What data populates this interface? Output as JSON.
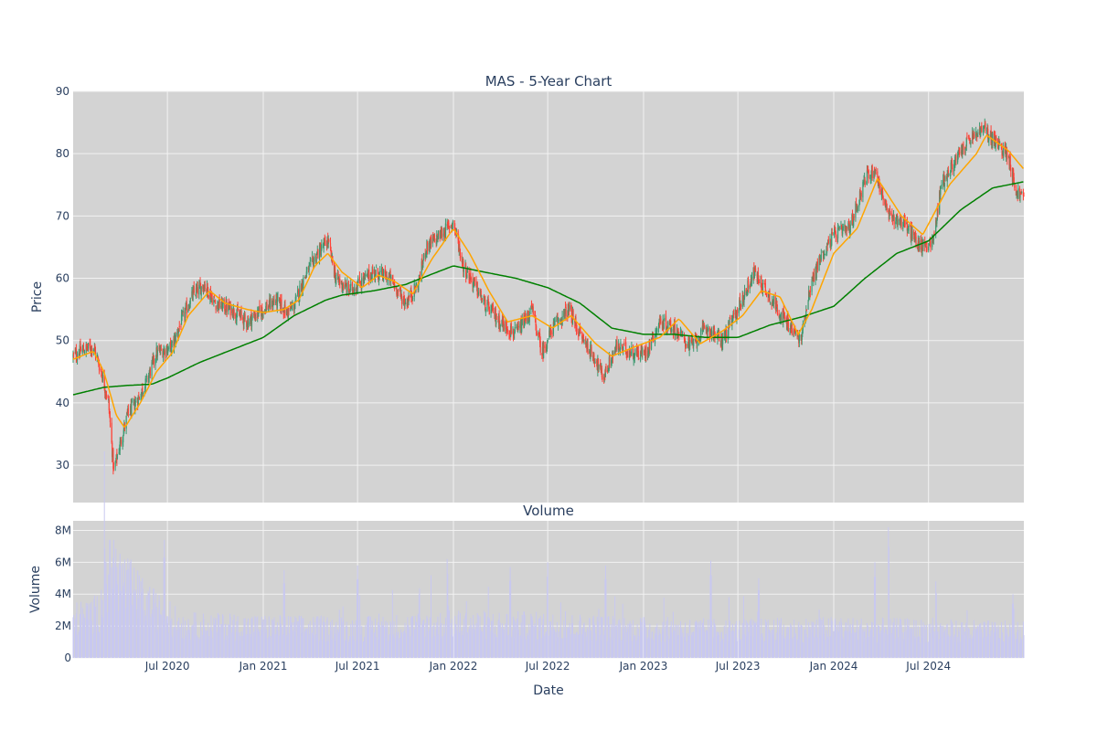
{
  "chart_data": [
    {
      "type": "candlestick",
      "title": "MAS - 5-Year Chart",
      "ylabel": "Price",
      "xlabel": "",
      "ylim": [
        24,
        90
      ],
      "yticks": [
        30,
        40,
        50,
        60,
        70,
        80,
        90
      ],
      "x_range": [
        "2020-01-02",
        "2024-12-31"
      ],
      "xtick_dates": [
        "2020-07-01",
        "2021-01-01",
        "2021-07-01",
        "2022-01-01",
        "2022-07-01",
        "2023-01-01",
        "2023-07-01",
        "2024-01-01",
        "2024-07-01"
      ],
      "grid": true,
      "legend": "none",
      "colors": {
        "plot_bg": "#d3d3d3",
        "grid": "#f2f2f2",
        "up": "#3d9970",
        "down": "#ff4136",
        "ma_short": "#ffa500",
        "ma_long": "#008000",
        "text": "#2a3f5f"
      },
      "close_anchors": [
        [
          "2020-01-02",
          47.5
        ],
        [
          "2020-01-20",
          48.5
        ],
        [
          "2020-02-10",
          49.0
        ],
        [
          "2020-02-25",
          45.0
        ],
        [
          "2020-03-10",
          40.0
        ],
        [
          "2020-03-20",
          29.0
        ],
        [
          "2020-03-31",
          33.0
        ],
        [
          "2020-04-15",
          38.0
        ],
        [
          "2020-05-01",
          40.0
        ],
        [
          "2020-05-20",
          43.0
        ],
        [
          "2020-06-10",
          48.0
        ],
        [
          "2020-07-10",
          49.0
        ],
        [
          "2020-08-01",
          54.0
        ],
        [
          "2020-08-20",
          57.5
        ],
        [
          "2020-09-10",
          59.0
        ],
        [
          "2020-10-01",
          56.0
        ],
        [
          "2020-11-01",
          55.0
        ],
        [
          "2020-12-01",
          53.0
        ],
        [
          "2021-01-01",
          55.0
        ],
        [
          "2021-01-25",
          56.5
        ],
        [
          "2021-02-15",
          54.5
        ],
        [
          "2021-03-01",
          55.5
        ],
        [
          "2021-03-20",
          60.0
        ],
        [
          "2021-04-15",
          64.0
        ],
        [
          "2021-05-05",
          66.0
        ],
        [
          "2021-05-20",
          60.0
        ],
        [
          "2021-06-15",
          58.0
        ],
        [
          "2021-07-01",
          59.0
        ],
        [
          "2021-08-01",
          61.0
        ],
        [
          "2021-09-01",
          60.0
        ],
        [
          "2021-10-01",
          56.0
        ],
        [
          "2021-10-25",
          59.0
        ],
        [
          "2021-11-10",
          65.0
        ],
        [
          "2021-12-01",
          66.5
        ],
        [
          "2022-01-01",
          69.0
        ],
        [
          "2022-01-20",
          62.0
        ],
        [
          "2022-02-10",
          59.0
        ],
        [
          "2022-03-01",
          56.0
        ],
        [
          "2022-04-01",
          53.0
        ],
        [
          "2022-05-01",
          51.0
        ],
        [
          "2022-06-01",
          55.0
        ],
        [
          "2022-06-20",
          48.0
        ],
        [
          "2022-07-10",
          52.0
        ],
        [
          "2022-08-10",
          55.0
        ],
        [
          "2022-09-01",
          51.0
        ],
        [
          "2022-10-01",
          47.0
        ],
        [
          "2022-10-15",
          44.0
        ],
        [
          "2022-11-10",
          49.0
        ],
        [
          "2022-12-15",
          48.0
        ],
        [
          "2023-01-05",
          48.0
        ],
        [
          "2023-02-01",
          53.0
        ],
        [
          "2023-03-01",
          52.0
        ],
        [
          "2023-04-01",
          49.0
        ],
        [
          "2023-05-01",
          52.0
        ],
        [
          "2023-06-01",
          50.0
        ],
        [
          "2023-07-01",
          55.0
        ],
        [
          "2023-08-01",
          61.0
        ],
        [
          "2023-09-01",
          57.0
        ],
        [
          "2023-10-01",
          53.0
        ],
        [
          "2023-10-30",
          50.0
        ],
        [
          "2023-11-15",
          58.0
        ],
        [
          "2023-12-05",
          63.0
        ],
        [
          "2024-01-01",
          67.0
        ],
        [
          "2024-02-01",
          68.0
        ],
        [
          "2024-03-01",
          76.0
        ],
        [
          "2024-03-20",
          77.5
        ],
        [
          "2024-04-15",
          70.0
        ],
        [
          "2024-05-15",
          69.0
        ],
        [
          "2024-06-15",
          65.0
        ],
        [
          "2024-07-10",
          66.0
        ],
        [
          "2024-07-25",
          75.0
        ],
        [
          "2024-08-15",
          78.0
        ],
        [
          "2024-09-15",
          82.0
        ],
        [
          "2024-10-15",
          84.0
        ],
        [
          "2024-11-15",
          81.0
        ],
        [
          "2024-12-01",
          80.0
        ],
        [
          "2024-12-15",
          74.0
        ],
        [
          "2024-12-31",
          73.0
        ]
      ],
      "ma_short_anchors": [
        [
          "2020-01-02",
          47.0
        ],
        [
          "2020-02-10",
          48.3
        ],
        [
          "2020-03-01",
          45.0
        ],
        [
          "2020-03-25",
          38.0
        ],
        [
          "2020-04-10",
          36.0
        ],
        [
          "2020-05-10",
          40.0
        ],
        [
          "2020-06-10",
          45.0
        ],
        [
          "2020-07-10",
          48.0
        ],
        [
          "2020-08-10",
          54.0
        ],
        [
          "2020-09-20",
          58.0
        ],
        [
          "2020-10-20",
          56.0
        ],
        [
          "2020-12-01",
          55.0
        ],
        [
          "2021-01-01",
          54.5
        ],
        [
          "2021-02-10",
          55.0
        ],
        [
          "2021-03-10",
          56.5
        ],
        [
          "2021-04-10",
          62.0
        ],
        [
          "2021-05-05",
          64.0
        ],
        [
          "2021-06-01",
          61.0
        ],
        [
          "2021-07-10",
          58.5
        ],
        [
          "2021-08-10",
          60.5
        ],
        [
          "2021-09-10",
          59.5
        ],
        [
          "2021-10-15",
          57.5
        ],
        [
          "2021-11-20",
          63.0
        ],
        [
          "2022-01-01",
          68.0
        ],
        [
          "2022-02-01",
          64.0
        ],
        [
          "2022-03-10",
          58.0
        ],
        [
          "2022-04-15",
          53.0
        ],
        [
          "2022-06-01",
          54.0
        ],
        [
          "2022-07-10",
          52.0
        ],
        [
          "2022-08-15",
          54.0
        ],
        [
          "2022-10-01",
          49.5
        ],
        [
          "2022-11-01",
          47.5
        ],
        [
          "2022-12-15",
          49.0
        ],
        [
          "2023-02-01",
          50.5
        ],
        [
          "2023-03-10",
          53.5
        ],
        [
          "2023-04-20",
          49.5
        ],
        [
          "2023-06-01",
          51.5
        ],
        [
          "2023-07-10",
          54.0
        ],
        [
          "2023-08-15",
          58.0
        ],
        [
          "2023-09-20",
          57.0
        ],
        [
          "2023-10-25",
          51.0
        ],
        [
          "2023-11-20",
          55.0
        ],
        [
          "2024-01-01",
          64.0
        ],
        [
          "2024-02-15",
          68.0
        ],
        [
          "2024-03-25",
          76.0
        ],
        [
          "2024-05-10",
          70.0
        ],
        [
          "2024-06-20",
          67.0
        ],
        [
          "2024-08-10",
          75.0
        ],
        [
          "2024-10-01",
          80.0
        ],
        [
          "2024-10-20",
          83.0
        ],
        [
          "2024-12-01",
          80.5
        ],
        [
          "2024-12-31",
          77.5
        ]
      ],
      "ma_long_anchors": [
        [
          "2020-01-02",
          41.3
        ],
        [
          "2020-03-01",
          42.5
        ],
        [
          "2020-04-15",
          42.8
        ],
        [
          "2020-06-01",
          43.0
        ],
        [
          "2020-07-01",
          44.0
        ],
        [
          "2020-09-01",
          46.5
        ],
        [
          "2020-11-01",
          48.5
        ],
        [
          "2021-01-01",
          50.5
        ],
        [
          "2021-03-01",
          54.0
        ],
        [
          "2021-05-01",
          56.5
        ],
        [
          "2021-06-01",
          57.3
        ],
        [
          "2021-08-01",
          58.0
        ],
        [
          "2021-10-01",
          59.0
        ],
        [
          "2021-12-01",
          61.0
        ],
        [
          "2022-01-01",
          62.0
        ],
        [
          "2022-03-01",
          61.0
        ],
        [
          "2022-05-01",
          60.0
        ],
        [
          "2022-07-01",
          58.5
        ],
        [
          "2022-09-01",
          56.0
        ],
        [
          "2022-11-01",
          52.0
        ],
        [
          "2023-01-01",
          51.0
        ],
        [
          "2023-03-01",
          51.0
        ],
        [
          "2023-05-01",
          50.5
        ],
        [
          "2023-07-01",
          50.5
        ],
        [
          "2023-09-01",
          52.5
        ],
        [
          "2023-11-01",
          53.8
        ],
        [
          "2024-01-01",
          55.5
        ],
        [
          "2024-03-01",
          60.0
        ],
        [
          "2024-05-01",
          64.0
        ],
        [
          "2024-07-01",
          66.0
        ],
        [
          "2024-09-01",
          71.0
        ],
        [
          "2024-11-01",
          74.5
        ],
        [
          "2024-12-31",
          75.5
        ]
      ]
    },
    {
      "type": "bar",
      "title": "Volume",
      "xlabel": "Date",
      "ylabel": "Volume",
      "ylim": [
        0,
        8600000
      ],
      "yticks": [
        0,
        2000000,
        4000000,
        6000000,
        8000000
      ],
      "ytick_labels": [
        "0",
        "2M",
        "4M",
        "6M",
        "8M"
      ],
      "xtick_labels": [
        "Jul 2020",
        "Jan 2021",
        "Jul 2021",
        "Jan 2022",
        "Jul 2022",
        "Jan 2023",
        "Jul 2023",
        "Jan 2024",
        "Jul 2024"
      ],
      "grid": true,
      "colors": {
        "plot_bg": "#d3d3d3",
        "bar": "#c8c8f0",
        "grid": "#f2f2f2"
      },
      "level_anchors": [
        [
          "2020-01-02",
          2.4
        ],
        [
          "2020-02-20",
          2.8
        ],
        [
          "2020-03-15",
          5.5
        ],
        [
          "2020-04-15",
          4.5
        ],
        [
          "2020-05-15",
          3.5
        ],
        [
          "2020-06-15",
          2.8
        ],
        [
          "2020-08-01",
          2.0
        ],
        [
          "2021-01-01",
          1.9
        ],
        [
          "2021-07-01",
          1.8
        ],
        [
          "2022-01-01",
          2.1
        ],
        [
          "2022-07-01",
          2.0
        ],
        [
          "2023-01-01",
          1.8
        ],
        [
          "2023-07-01",
          1.7
        ],
        [
          "2024-01-01",
          1.8
        ],
        [
          "2024-07-01",
          1.7
        ],
        [
          "2024-12-31",
          1.6
        ]
      ],
      "spikes": [
        [
          "2020-03-02",
          8.1
        ],
        [
          "2020-03-20",
          7.4
        ],
        [
          "2020-04-01",
          6.5
        ],
        [
          "2020-06-25",
          7.4
        ],
        [
          "2021-02-10",
          5.5
        ],
        [
          "2021-07-01",
          5.8
        ],
        [
          "2021-11-20",
          6.1
        ],
        [
          "2021-12-20",
          6.2
        ],
        [
          "2022-04-20",
          5.7
        ],
        [
          "2022-07-01",
          6.0
        ],
        [
          "2022-10-20",
          5.8
        ],
        [
          "2023-05-10",
          6.1
        ],
        [
          "2023-08-10",
          5.0
        ],
        [
          "2024-03-20",
          6.0
        ],
        [
          "2024-04-15",
          8.2
        ],
        [
          "2024-07-15",
          4.8
        ],
        [
          "2024-12-10",
          4.0
        ]
      ]
    }
  ]
}
